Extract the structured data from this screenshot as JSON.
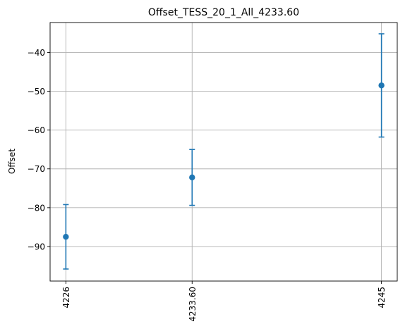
{
  "chart_data": {
    "type": "scatter",
    "title": "Offset_TESS_20_1_All_4233.60",
    "xlabel": "",
    "ylabel": "Offset",
    "x_tick_labels": [
      "4226",
      "4233.60",
      "4245"
    ],
    "x_values": [
      4226,
      4233.6,
      4245
    ],
    "xlim": [
      4225.05,
      4245.95
    ],
    "ylim": [
      -98.9,
      -32.3
    ],
    "y_ticks": [
      -90,
      -80,
      -70,
      -60,
      -50,
      -40
    ],
    "grid": true,
    "series": [
      {
        "points": [
          {
            "x": 4226,
            "y": -87.5,
            "err_low": -95.8,
            "err_high": -79.2
          },
          {
            "x": 4233.6,
            "y": -72.2,
            "err_low": -79.4,
            "err_high": -65.0
          },
          {
            "x": 4245,
            "y": -48.5,
            "err_low": -61.8,
            "err_high": -35.2
          }
        ],
        "color": "#1f77b4"
      }
    ]
  }
}
